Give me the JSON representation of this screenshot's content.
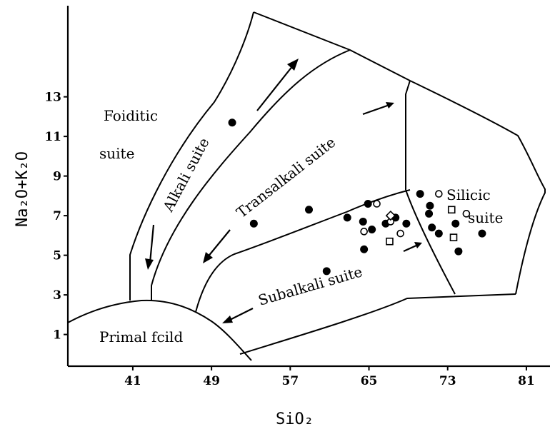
{
  "chart_data": {
    "type": "scatter",
    "xlabel": "SiO₂",
    "ylabel": "Na₂O+K₂O",
    "x_ticks": [
      "41",
      "49",
      "57",
      "65",
      "73",
      "81"
    ],
    "x_tick_values": [
      41,
      49,
      57,
      65,
      73,
      81
    ],
    "y_ticks": [
      "1",
      "3",
      "5",
      "7",
      "9",
      "11",
      "13"
    ],
    "y_tick_values": [
      1,
      3,
      5,
      7,
      9,
      11,
      13
    ],
    "xlim": [
      34.4,
      83.4
    ],
    "ylim": [
      -0.6,
      17.6
    ],
    "grid": false,
    "fields": [
      {
        "label": "Foiditic",
        "label2": "suite"
      },
      {
        "label": "Alkali suite"
      },
      {
        "label": "Transalkali suite"
      },
      {
        "label": "Silicic",
        "label2": "suite"
      },
      {
        "label": "Subalkali suite"
      },
      {
        "label": "Primal fcild"
      }
    ],
    "series": [
      {
        "marker": "filled-circle",
        "points": [
          [
            51.1,
            11.7
          ],
          [
            53.3,
            6.6
          ],
          [
            58.9,
            7.3
          ],
          [
            60.7,
            4.2
          ],
          [
            62.8,
            6.9
          ],
          [
            64.4,
            6.7
          ],
          [
            64.5,
            5.3
          ],
          [
            64.9,
            7.6
          ],
          [
            65.3,
            6.3
          ],
          [
            66.7,
            6.6
          ],
          [
            67.7,
            6.9
          ],
          [
            68.8,
            6.6
          ],
          [
            70.2,
            8.1
          ],
          [
            71.1,
            7.1
          ],
          [
            71.2,
            7.5
          ],
          [
            71.4,
            6.4
          ],
          [
            72.1,
            6.1
          ],
          [
            73.8,
            6.6
          ],
          [
            74.1,
            5.2
          ],
          [
            76.5,
            6.1
          ]
        ]
      },
      {
        "marker": "open-circle",
        "points": [
          [
            64.5,
            6.2
          ],
          [
            65.8,
            7.6
          ],
          [
            67.2,
            6.7
          ],
          [
            72.1,
            8.1
          ],
          [
            74.9,
            7.1
          ],
          [
            68.2,
            6.1
          ]
        ]
      },
      {
        "marker": "open-diamond",
        "points": [
          [
            67.2,
            7.0
          ]
        ]
      },
      {
        "marker": "open-square",
        "points": [
          [
            67.1,
            5.7
          ],
          [
            73.4,
            7.3
          ],
          [
            73.6,
            5.9
          ]
        ]
      }
    ]
  }
}
